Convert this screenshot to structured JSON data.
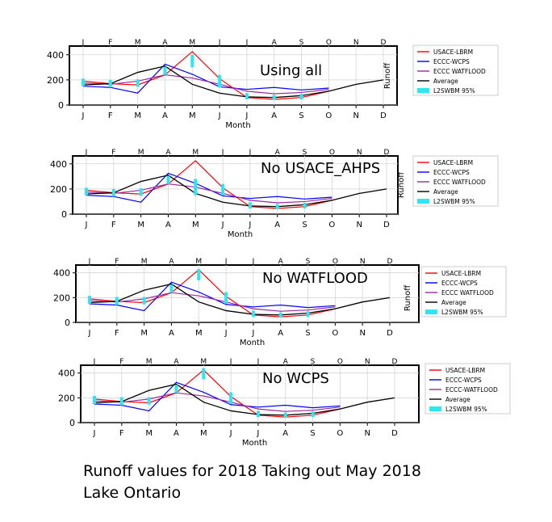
{
  "caption": {
    "line1": "Runoff values for 2018 Taking out May 2018",
    "line2": "Lake Ontario"
  },
  "colors": {
    "usace": "#ff0000",
    "wcps": "#0000ff",
    "watflood": "#9b2a9b",
    "average": "#000000",
    "l2swbm": "#2ce6f2"
  },
  "chart_data": [
    {
      "type": "line",
      "title": "Using all",
      "xlabel": "Month",
      "ylabel": "Runoff",
      "categories": [
        "J",
        "F",
        "M",
        "A",
        "M",
        "J",
        "J",
        "A",
        "S",
        "O",
        "N",
        "D"
      ],
      "yticks": [
        0,
        200,
        400
      ],
      "ylim": [
        0,
        450
      ],
      "grid": true,
      "legend_position": "right",
      "series": [
        {
          "name": "USACE-LBRM",
          "values": [
            190,
            170,
            160,
            240,
            425,
            210,
            60,
            45,
            60,
            110,
            null,
            null
          ]
        },
        {
          "name": "ECCC-WCPS",
          "values": [
            150,
            140,
            95,
            325,
            245,
            145,
            125,
            140,
            120,
            135,
            null,
            null
          ]
        },
        {
          "name": "ECCC WATFLOOD",
          "values": [
            175,
            165,
            190,
            240,
            215,
            165,
            110,
            90,
            100,
            125,
            null,
            null
          ]
        },
        {
          "name": "Average",
          "values": [
            160,
            170,
            260,
            310,
            165,
            95,
            65,
            60,
            75,
            110,
            165,
            200
          ]
        },
        {
          "name": "L2SWBM 95%",
          "ranges": [
            [
              150,
              210
            ],
            [
              140,
              200
            ],
            [
              145,
              205
            ],
            [
              240,
              305
            ],
            [
              300,
              400
            ],
            [
              140,
              240
            ],
            [
              45,
              95
            ],
            [
              40,
              80
            ],
            [
              45,
              90
            ],
            null,
            null,
            null
          ]
        }
      ]
    },
    {
      "type": "line",
      "title": "No USACE_AHPS",
      "xlabel": "Month",
      "ylabel": "Runoff",
      "categories": [
        "J",
        "F",
        "M",
        "A",
        "M",
        "J",
        "J",
        "A",
        "S",
        "O",
        "N",
        "D"
      ],
      "yticks": [
        0,
        200,
        400
      ],
      "ylim": [
        0,
        450
      ],
      "grid": true,
      "legend_position": "right",
      "series": [
        {
          "name": "USACE-LBRM",
          "values": [
            190,
            170,
            160,
            240,
            425,
            210,
            60,
            45,
            60,
            110,
            null,
            null
          ]
        },
        {
          "name": "ECCC-WCPS",
          "values": [
            150,
            140,
            95,
            325,
            245,
            145,
            125,
            140,
            120,
            135,
            null,
            null
          ]
        },
        {
          "name": "ECCC WATFLOOD",
          "values": [
            175,
            165,
            190,
            240,
            215,
            165,
            110,
            90,
            100,
            125,
            null,
            null
          ]
        },
        {
          "name": "Average",
          "values": [
            160,
            170,
            260,
            310,
            165,
            95,
            65,
            60,
            75,
            110,
            165,
            200
          ]
        },
        {
          "name": "L2SWBM 95%",
          "ranges": [
            [
              150,
              210
            ],
            [
              140,
              200
            ],
            [
              145,
              205
            ],
            [
              240,
              305
            ],
            [
              150,
              280
            ],
            [
              150,
              240
            ],
            [
              45,
              95
            ],
            [
              40,
              80
            ],
            [
              45,
              90
            ],
            null,
            null,
            null
          ]
        }
      ]
    },
    {
      "type": "line",
      "title": "No WATFLOOD",
      "xlabel": "Month",
      "ylabel": "Runoff",
      "categories": [
        "J",
        "F",
        "M",
        "A",
        "M",
        "J",
        "J",
        "A",
        "S",
        "O",
        "N",
        "D"
      ],
      "yticks": [
        0,
        200,
        400
      ],
      "ylim": [
        0,
        450
      ],
      "grid": true,
      "legend_position": "right",
      "series": [
        {
          "name": "USACE-LBRM",
          "values": [
            190,
            170,
            160,
            240,
            425,
            210,
            60,
            45,
            60,
            110,
            null,
            null
          ]
        },
        {
          "name": "ECCC-WCPS",
          "values": [
            150,
            140,
            95,
            325,
            245,
            145,
            125,
            140,
            120,
            135,
            null,
            null
          ]
        },
        {
          "name": "ECCC WATFLOOD",
          "values": [
            175,
            165,
            190,
            240,
            215,
            165,
            110,
            90,
            100,
            125,
            null,
            null
          ]
        },
        {
          "name": "Average",
          "values": [
            160,
            170,
            260,
            310,
            165,
            95,
            65,
            60,
            75,
            110,
            165,
            200
          ]
        },
        {
          "name": "L2SWBM 95%",
          "ranges": [
            [
              150,
              215
            ],
            [
              140,
              205
            ],
            [
              145,
              205
            ],
            [
              240,
              305
            ],
            [
              340,
              430
            ],
            [
              150,
              245
            ],
            [
              45,
              95
            ],
            [
              40,
              80
            ],
            [
              45,
              90
            ],
            null,
            null,
            null
          ]
        }
      ]
    },
    {
      "type": "line",
      "title": "No WCPS",
      "xlabel": "Month",
      "ylabel": "Runoff",
      "categories": [
        "J",
        "F",
        "M",
        "A",
        "M",
        "J",
        "J",
        "A",
        "S",
        "O",
        "N",
        "D"
      ],
      "yticks": [
        0,
        200,
        400
      ],
      "ylim": [
        0,
        450
      ],
      "grid": true,
      "legend_position": "right",
      "series": [
        {
          "name": "USACE-LBRM",
          "values": [
            190,
            170,
            160,
            240,
            425,
            210,
            60,
            45,
            60,
            110,
            null,
            null
          ]
        },
        {
          "name": "ECCC-WCPS",
          "values": [
            150,
            140,
            95,
            325,
            245,
            145,
            125,
            140,
            120,
            135,
            null,
            null
          ]
        },
        {
          "name": "ECCC-WATFLOOD",
          "values": [
            175,
            165,
            190,
            240,
            215,
            165,
            110,
            90,
            100,
            125,
            null,
            null
          ]
        },
        {
          "name": "Average",
          "values": [
            160,
            170,
            260,
            310,
            165,
            95,
            65,
            60,
            75,
            110,
            165,
            200
          ]
        },
        {
          "name": "L2SWBM 95%",
          "ranges": [
            [
              150,
              215
            ],
            [
              140,
              205
            ],
            [
              145,
              205
            ],
            [
              240,
              305
            ],
            [
              350,
              440
            ],
            [
              150,
              245
            ],
            [
              45,
              95
            ],
            [
              40,
              80
            ],
            [
              45,
              90
            ],
            null,
            null,
            null
          ]
        }
      ]
    }
  ]
}
